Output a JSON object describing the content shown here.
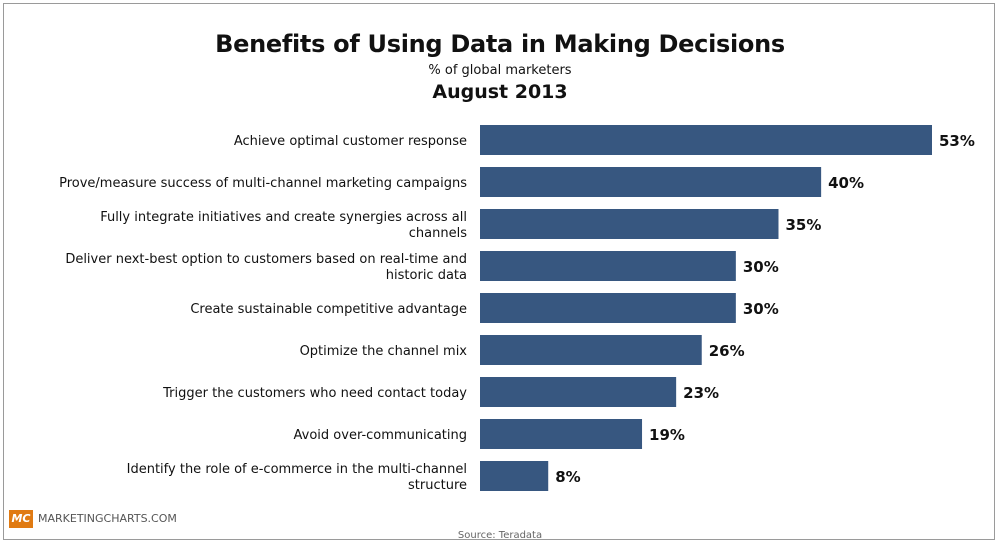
{
  "chart_data": {
    "type": "bar",
    "orientation": "horizontal",
    "title": "Benefits of Using Data in Making Decisions",
    "subtitle": "% of global marketers",
    "date": "August 2013",
    "categories": [
      "Achieve optimal customer response",
      "Prove/measure success of multi-channel marketing campaigns",
      "Fully integrate initiatives and create synergies across all channels",
      "Deliver next-best option to customers based on real-time and historic data",
      "Create sustainable competitive advantage",
      "Optimize the channel mix",
      "Trigger the customers who need contact today",
      "Avoid over-communicating",
      "Identify the role of e-commerce in the multi-channel structure"
    ],
    "values": [
      53,
      40,
      35,
      30,
      30,
      26,
      23,
      19,
      8
    ],
    "value_labels": [
      "53%",
      "40%",
      "35%",
      "30%",
      "30%",
      "26%",
      "23%",
      "19%",
      "8%"
    ],
    "bar_color": "#375780",
    "xlim": [
      0,
      53
    ]
  },
  "footer": {
    "logo_text": "MC",
    "brand": "MARKETINGCHARTS.COM",
    "source": "Source: Teradata"
  },
  "colors": {
    "bar": "#375780",
    "logo": "#e07a12"
  }
}
